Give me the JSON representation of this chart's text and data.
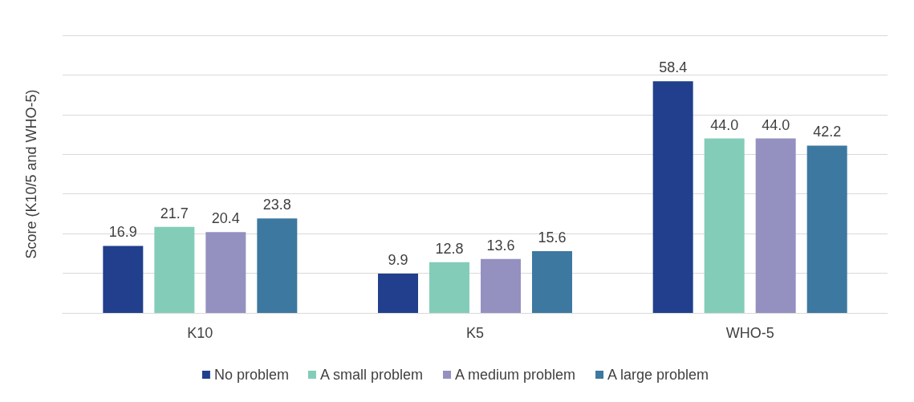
{
  "chart_data": {
    "type": "bar",
    "ylabel": "Score (K10/5 and WHO-5)",
    "categories": [
      "K10",
      "K5",
      "WHO-5"
    ],
    "series": [
      {
        "name": "No problem",
        "color": "#213f8c",
        "values": [
          16.9,
          9.9,
          58.4
        ],
        "value_labels": [
          "16.9",
          "9.9",
          "58.4"
        ]
      },
      {
        "name": "A small problem",
        "color": "#83cdb8",
        "values": [
          21.7,
          12.8,
          44.0
        ],
        "value_labels": [
          "21.7",
          "12.8",
          "44.0"
        ]
      },
      {
        "name": "A medium problem",
        "color": "#9491c1",
        "values": [
          20.4,
          13.6,
          44.0
        ],
        "value_labels": [
          "20.4",
          "13.6",
          "44.0"
        ]
      },
      {
        "name": "A large problem",
        "color": "#3d78a0",
        "values": [
          23.8,
          15.6,
          42.2
        ],
        "value_labels": [
          "23.8",
          "15.6",
          "42.2"
        ]
      }
    ],
    "ylim": [
      0,
      70
    ],
    "yticks": [
      {
        "value": 0,
        "label": null
      },
      {
        "value": 10,
        "label": null
      },
      {
        "value": 20,
        "label": null
      },
      {
        "value": 30,
        "label": null
      },
      {
        "value": 40,
        "label": null
      },
      {
        "value": 50,
        "label": null
      },
      {
        "value": 60,
        "label": null
      },
      {
        "value": 70,
        "label": null
      }
    ],
    "grid": "y",
    "legend": "bottom",
    "tick_labels": "x"
  }
}
